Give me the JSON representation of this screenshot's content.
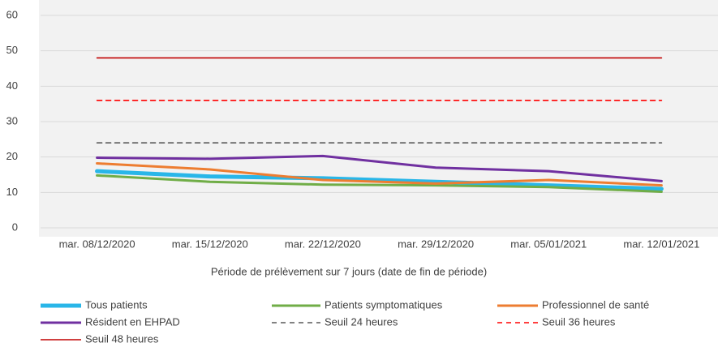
{
  "chart_data": {
    "type": "line",
    "x_label": "Période de prélèvement sur 7 jours (date de fin de période)",
    "categories": [
      "mar. 08/12/2020",
      "mar. 15/12/2020",
      "mar. 22/12/2020",
      "mar. 29/12/2020",
      "mar. 05/01/2021",
      "mar. 12/01/2021"
    ],
    "ylim": [
      0,
      60
    ],
    "yticks": [
      0,
      10,
      20,
      30,
      40,
      50,
      60
    ],
    "grid": true,
    "series": [
      {
        "name": "Tous patients",
        "color": "#29b6e8",
        "values": [
          16,
          14.5,
          14,
          13,
          12,
          11
        ]
      },
      {
        "name": "Patients symptomatiques",
        "color": "#70ad47",
        "values": [
          14.8,
          13,
          12.2,
          12,
          11.5,
          10.2
        ]
      },
      {
        "name": "Professionnel de santé",
        "color": "#ed7d31",
        "values": [
          18.2,
          16.5,
          13.5,
          12.5,
          13.5,
          12
        ]
      },
      {
        "name": "Résident en EHPAD",
        "color": "#7030a0",
        "values": [
          19.8,
          19.5,
          20.3,
          17,
          16,
          13.2
        ]
      },
      {
        "name": "Seuil 24 heures",
        "color": "#595959",
        "dashed": true,
        "values": [
          24,
          24,
          24,
          24,
          24,
          24
        ]
      },
      {
        "name": "Seuil 36 heures",
        "color": "#ff0000",
        "dashed": true,
        "values": [
          36,
          36,
          36,
          36,
          36,
          36
        ]
      },
      {
        "name": "Seuil 48 heures",
        "color": "#c00000",
        "values": [
          48,
          48,
          48,
          48,
          48,
          48
        ]
      }
    ]
  }
}
